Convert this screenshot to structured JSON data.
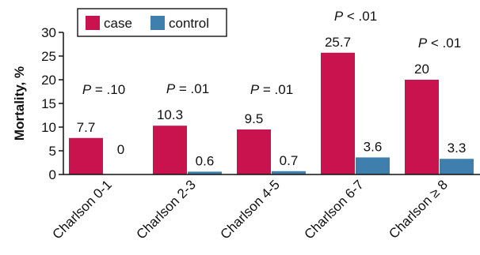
{
  "chart_data": {
    "type": "bar",
    "title": "",
    "xlabel": "",
    "ylabel": "Mortality, %",
    "ylim": [
      0,
      30
    ],
    "yticks": [
      "0",
      "5",
      "10",
      "15",
      "20",
      "25",
      "30"
    ],
    "categories": [
      "Charlson 0-1",
      "Charlson 2-3",
      "Charlson 4-5",
      "Charlson 6-7",
      "Charlson ≥ 8"
    ],
    "series": [
      {
        "name": "case",
        "color": "#c8134f",
        "values": [
          7.7,
          10.3,
          9.5,
          25.7,
          20
        ],
        "labels": [
          "7.7",
          "10.3",
          "9.5",
          "25.7",
          "20"
        ]
      },
      {
        "name": "control",
        "color": "#3e7fae",
        "values": [
          0,
          0.6,
          0.7,
          3.6,
          3.3
        ],
        "labels": [
          "0",
          "0.6",
          "0.7",
          "3.6",
          "3.3"
        ]
      }
    ],
    "p_values": [
      "P = .10",
      "P = .01",
      "P = .01",
      "P < .01",
      "P < .01"
    ],
    "legend_position": "top-left",
    "grid": false
  }
}
